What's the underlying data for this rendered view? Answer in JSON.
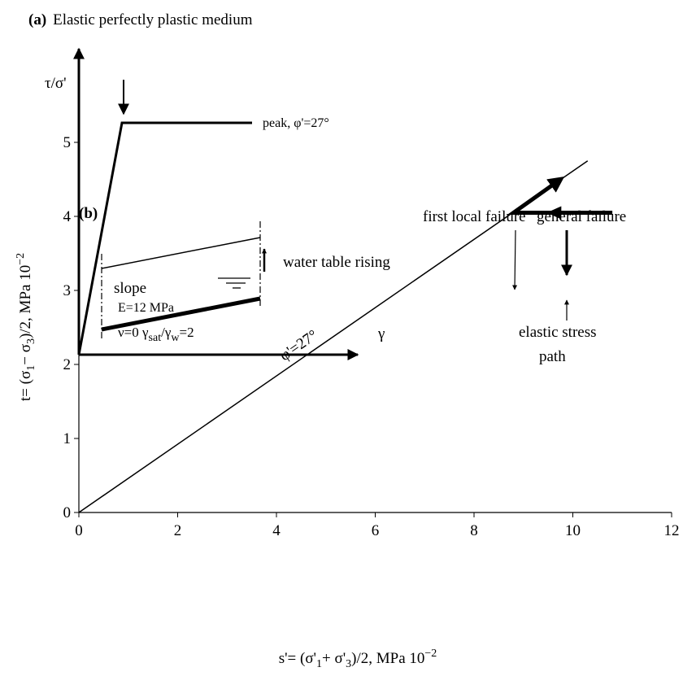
{
  "panel_a": {
    "label": "(a)",
    "title": "Elastic perfectly plastic medium",
    "ylabel": "τ/σ'",
    "xlabel": "γ",
    "peak": "peak,  φ'=27°",
    "modulus": "E=12 MPa",
    "poisson": [
      "ν=0 γ",
      "sat",
      "/γ",
      "w",
      "=2"
    ]
  },
  "chart_data": {
    "type": "line",
    "panel_label": "(b)",
    "xlabel": [
      "s'= (σ'",
      "1",
      "+ σ'",
      "3",
      ")/2, MPa 10",
      "−2"
    ],
    "ylabel": [
      "t= (σ",
      "1",
      "− σ",
      "3",
      ")/2,  MPa 10",
      "−2"
    ],
    "xlim": [
      0,
      12
    ],
    "ylim": [
      0,
      5
    ],
    "xticks": [
      0,
      2,
      4,
      6,
      8,
      10,
      12
    ],
    "yticks": [
      0,
      1,
      2,
      3,
      4,
      5
    ],
    "series": [
      {
        "x": [
          0,
          10.3
        ],
        "y": [
          0,
          4.75
        ],
        "color": "#000000",
        "line_width": 1.5
      },
      {
        "x": [
          10.8,
          8.8,
          9.75
        ],
        "y": [
          4.05,
          4.05,
          4.5
        ],
        "color": "#000000",
        "line_width": 5
      }
    ],
    "annotations": {
      "envelope": "φ'=27°",
      "slope": "slope",
      "water": "water table rising",
      "first_local": "first local failure",
      "general": "general failure",
      "elastic": [
        "elastic stress",
        "path"
      ]
    }
  }
}
